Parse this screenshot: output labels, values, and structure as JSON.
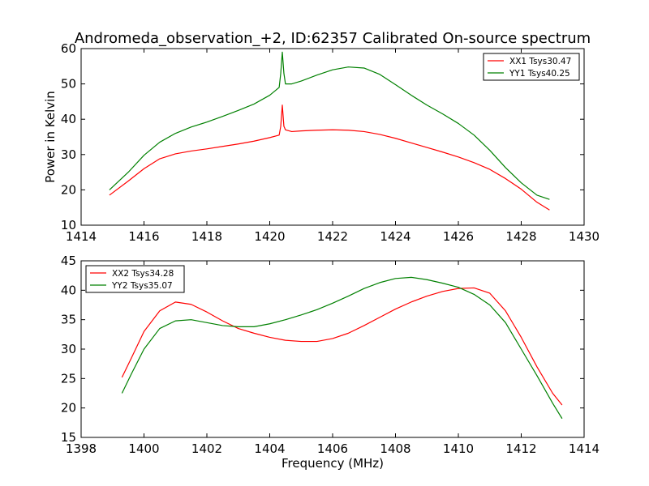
{
  "chart_data": [
    {
      "type": "line",
      "title": "Andromeda_observation_+2, ID:62357 Calibrated On-source spectrum",
      "xlabel": "",
      "ylabel": "Power in Kelvin",
      "xlim": [
        1414,
        1430
      ],
      "ylim": [
        10,
        60
      ],
      "xticks": [
        1414,
        1416,
        1418,
        1420,
        1422,
        1424,
        1426,
        1428,
        1430
      ],
      "yticks": [
        10,
        20,
        30,
        40,
        50,
        60
      ],
      "grid": false,
      "legend": "top-right",
      "series": [
        {
          "name": "XX1 Tsys30.47",
          "color": "#ff0000",
          "x": [
            1414.9,
            1415.5,
            1416.0,
            1416.5,
            1417.0,
            1417.5,
            1418.0,
            1418.5,
            1419.0,
            1419.5,
            1420.0,
            1420.3,
            1420.35,
            1420.4,
            1420.45,
            1420.5,
            1420.7,
            1421.0,
            1421.5,
            1422.0,
            1422.5,
            1423.0,
            1423.5,
            1424.0,
            1424.5,
            1425.0,
            1425.5,
            1426.0,
            1426.5,
            1427.0,
            1427.5,
            1428.0,
            1428.5,
            1428.9
          ],
          "y": [
            18.5,
            22.5,
            26.0,
            28.8,
            30.2,
            31.0,
            31.6,
            32.3,
            33.0,
            33.8,
            34.8,
            35.5,
            38.0,
            44.0,
            38.0,
            37.0,
            36.5,
            36.7,
            36.9,
            37.0,
            36.9,
            36.5,
            35.7,
            34.6,
            33.3,
            32.0,
            30.7,
            29.3,
            27.7,
            25.8,
            23.2,
            20.2,
            16.5,
            14.3
          ]
        },
        {
          "name": "YY1 Tsys40.25",
          "color": "#008000",
          "x": [
            1414.9,
            1415.5,
            1416.0,
            1416.5,
            1417.0,
            1417.5,
            1418.0,
            1418.5,
            1419.0,
            1419.5,
            1420.0,
            1420.3,
            1420.35,
            1420.4,
            1420.45,
            1420.5,
            1420.7,
            1421.0,
            1421.5,
            1422.0,
            1422.5,
            1423.0,
            1423.5,
            1424.0,
            1424.5,
            1425.0,
            1425.5,
            1426.0,
            1426.5,
            1427.0,
            1427.5,
            1428.0,
            1428.5,
            1428.9
          ],
          "y": [
            20.0,
            25.0,
            29.8,
            33.5,
            36.0,
            37.8,
            39.2,
            40.8,
            42.5,
            44.3,
            46.8,
            49.0,
            53.0,
            59.0,
            53.0,
            50.0,
            50.0,
            50.8,
            52.5,
            54.0,
            54.8,
            54.5,
            52.7,
            49.8,
            46.8,
            44.0,
            41.5,
            38.8,
            35.5,
            31.2,
            26.3,
            22.0,
            18.5,
            17.3
          ]
        }
      ]
    },
    {
      "type": "line",
      "title": "",
      "xlabel": "Frequency (MHz)",
      "ylabel": "",
      "xlim": [
        1398,
        1414
      ],
      "ylim": [
        15,
        45
      ],
      "xticks": [
        1398,
        1400,
        1402,
        1404,
        1406,
        1408,
        1410,
        1412,
        1414
      ],
      "yticks": [
        15,
        20,
        25,
        30,
        35,
        40,
        45
      ],
      "grid": false,
      "legend": "top-left",
      "series": [
        {
          "name": "XX2 Tsys34.28",
          "color": "#ff0000",
          "x": [
            1399.3,
            1399.6,
            1400.0,
            1400.5,
            1401.0,
            1401.5,
            1402.0,
            1402.5,
            1403.0,
            1403.5,
            1404.0,
            1404.5,
            1405.0,
            1405.5,
            1406.0,
            1406.5,
            1407.0,
            1407.5,
            1408.0,
            1408.5,
            1409.0,
            1409.5,
            1410.0,
            1410.5,
            1411.0,
            1411.5,
            1412.0,
            1412.5,
            1413.0,
            1413.3
          ],
          "y": [
            25.2,
            28.5,
            33.0,
            36.5,
            38.0,
            37.6,
            36.3,
            34.8,
            33.5,
            32.7,
            32.0,
            31.5,
            31.3,
            31.3,
            31.8,
            32.7,
            34.0,
            35.4,
            36.8,
            38.0,
            39.0,
            39.8,
            40.3,
            40.4,
            39.5,
            36.5,
            32.0,
            27.0,
            22.5,
            20.5
          ]
        },
        {
          "name": "YY2 Tsys35.07",
          "color": "#008000",
          "x": [
            1399.3,
            1399.6,
            1400.0,
            1400.5,
            1401.0,
            1401.5,
            1402.0,
            1402.5,
            1403.0,
            1403.5,
            1404.0,
            1404.5,
            1405.0,
            1405.5,
            1406.0,
            1406.5,
            1407.0,
            1407.5,
            1408.0,
            1408.5,
            1409.0,
            1409.5,
            1410.0,
            1410.5,
            1411.0,
            1411.5,
            1412.0,
            1412.5,
            1413.0,
            1413.3
          ],
          "y": [
            22.5,
            25.8,
            30.0,
            33.5,
            34.8,
            35.0,
            34.5,
            34.0,
            33.8,
            33.8,
            34.3,
            35.0,
            35.8,
            36.7,
            37.8,
            39.0,
            40.3,
            41.3,
            42.0,
            42.2,
            41.8,
            41.2,
            40.5,
            39.3,
            37.5,
            34.5,
            30.0,
            25.5,
            20.8,
            18.2
          ]
        }
      ]
    }
  ]
}
